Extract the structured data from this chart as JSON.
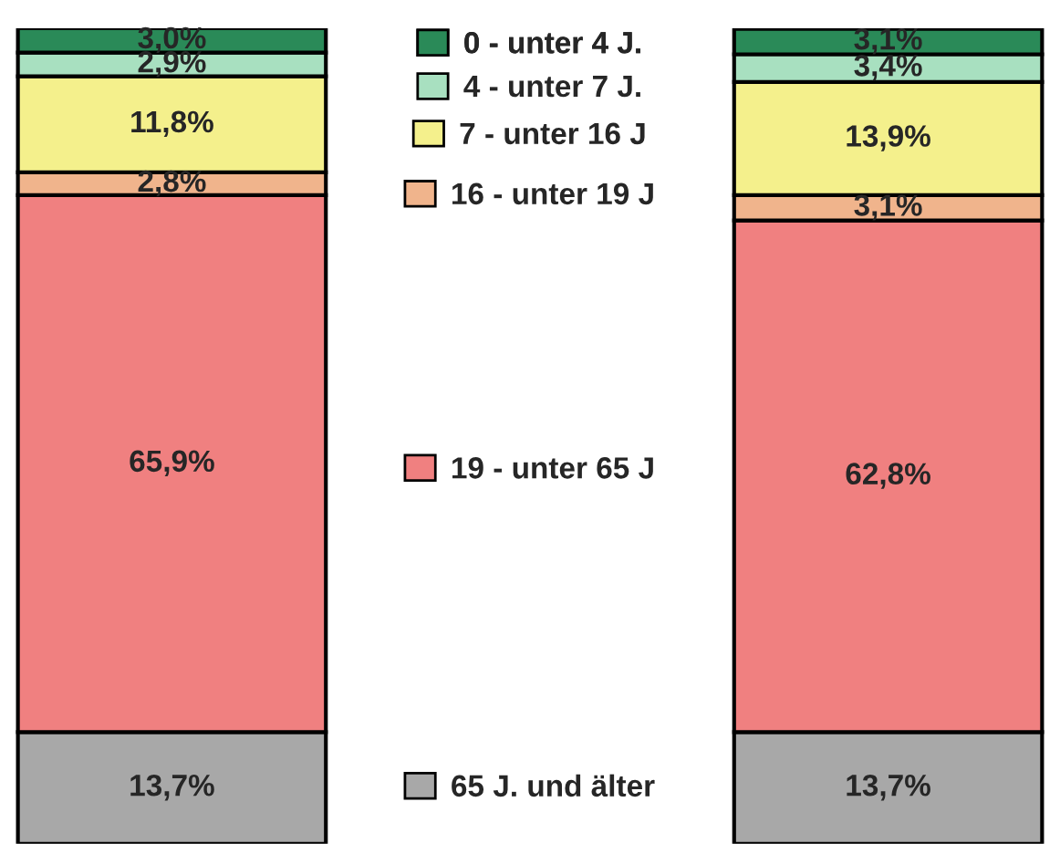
{
  "chart_data": {
    "type": "bar",
    "stacked": true,
    "categories": [
      null,
      null
    ],
    "data_labels": true,
    "legend": "center",
    "series": [
      {
        "name": "65 J. und älter",
        "color": "#a8a8a8",
        "values": [
          13.7,
          13.7
        ],
        "value_labels": [
          "13,7%",
          "13,7%"
        ]
      },
      {
        "name": "19 - unter 65 J",
        "color": "#f08080",
        "values": [
          65.9,
          62.8
        ],
        "value_labels": [
          "65,9%",
          "62,8%"
        ]
      },
      {
        "name": "16 - unter 19 J",
        "color": "#f0b48c",
        "values": [
          2.8,
          3.1
        ],
        "value_labels": [
          "2,8%",
          "3,1%"
        ]
      },
      {
        "name": "7 - unter 16 J",
        "color": "#f4f08c",
        "values": [
          11.8,
          13.9
        ],
        "value_labels": [
          "11,8%",
          "13,9%"
        ]
      },
      {
        "name": "4 - unter 7 J.",
        "color": "#a8e0c0",
        "values": [
          2.9,
          3.4
        ],
        "value_labels": [
          "2,9%",
          "3,4%"
        ]
      },
      {
        "name": "0 - unter 4 J.",
        "color": "#2a8a58",
        "values": [
          3.0,
          3.1
        ],
        "value_labels": [
          "3,0%",
          "3,1%"
        ]
      }
    ]
  }
}
